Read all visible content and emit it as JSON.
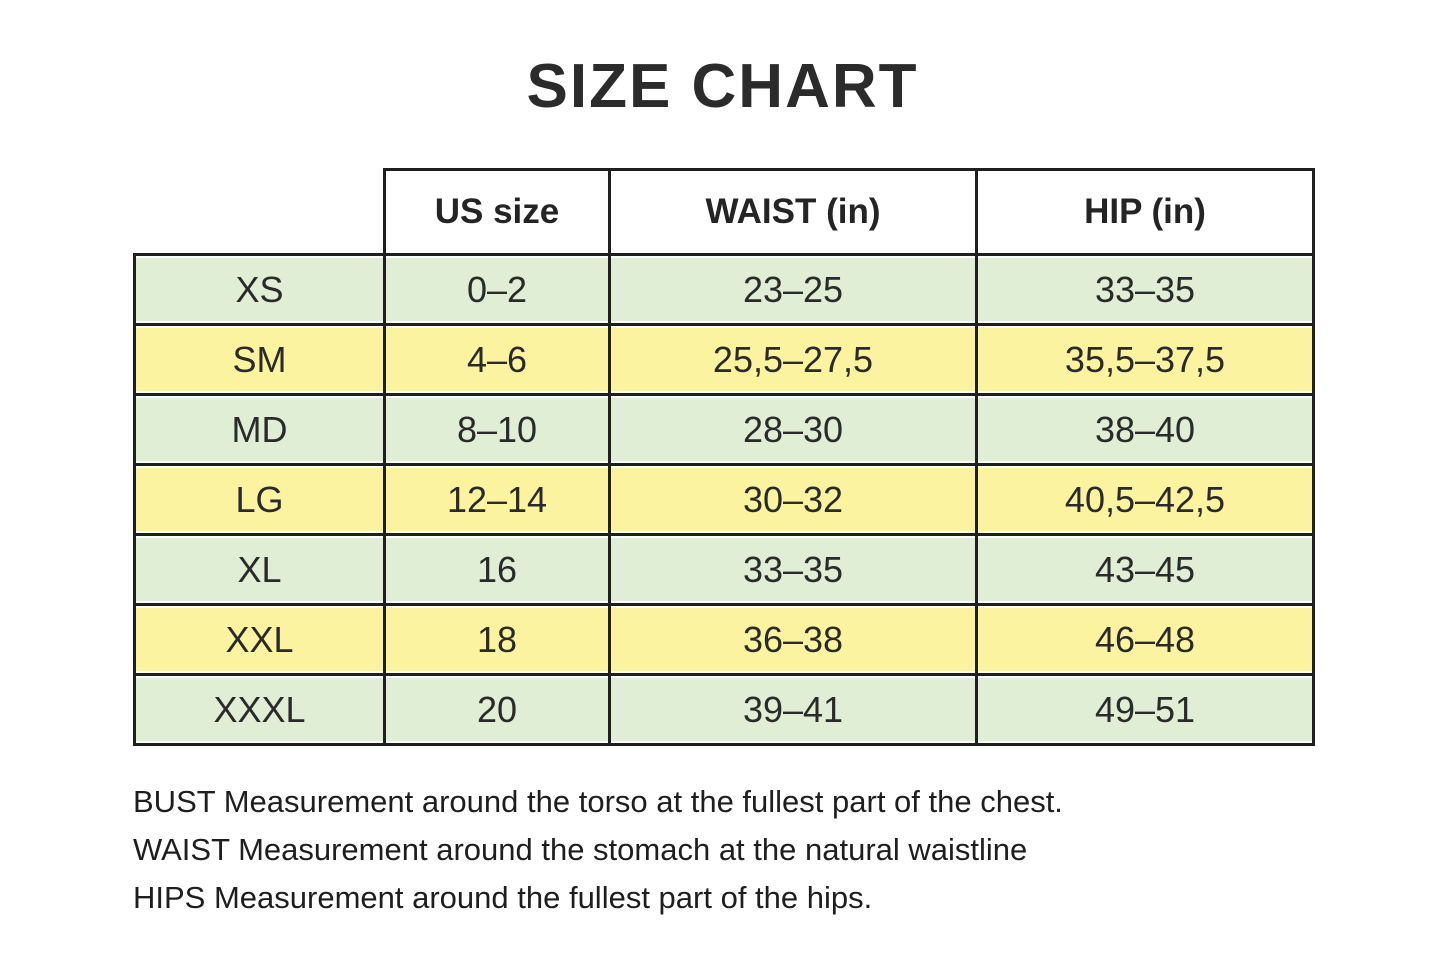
{
  "page": {
    "title": "SIZE CHART",
    "background_color": "#ffffff",
    "row_color_green": "#dfeed4",
    "row_color_yellow": "#fcf3a1",
    "grid_color": "#1f1f1f"
  },
  "table": {
    "columns": [
      "US size",
      "WAIST (in)",
      "HIP (in)"
    ],
    "rows": [
      {
        "size": "XS",
        "us_size": "0–2",
        "waist": "23–25",
        "hip": "33–35"
      },
      {
        "size": "SM",
        "us_size": "4–6",
        "waist": "25,5–27,5",
        "hip": "35,5–37,5"
      },
      {
        "size": "MD",
        "us_size": "8–10",
        "waist": "28–30",
        "hip": "38–40"
      },
      {
        "size": "LG",
        "us_size": "12–14",
        "waist": "30–32",
        "hip": "40,5–42,5"
      },
      {
        "size": "XL",
        "us_size": "16",
        "waist": "33–35",
        "hip": "43–45"
      },
      {
        "size": "XXL",
        "us_size": "18",
        "waist": "36–38",
        "hip": "46–48"
      },
      {
        "size": "XXXL",
        "us_size": "20",
        "waist": "39–41",
        "hip": "49–51"
      }
    ]
  },
  "footnotes": {
    "bust": "BUST Measurement around the torso at the fullest part of the chest.",
    "waist": "WAIST Measurement around the stomach at the natural waistline",
    "hips": "HIPS Measurement around the fullest part of the hips."
  }
}
